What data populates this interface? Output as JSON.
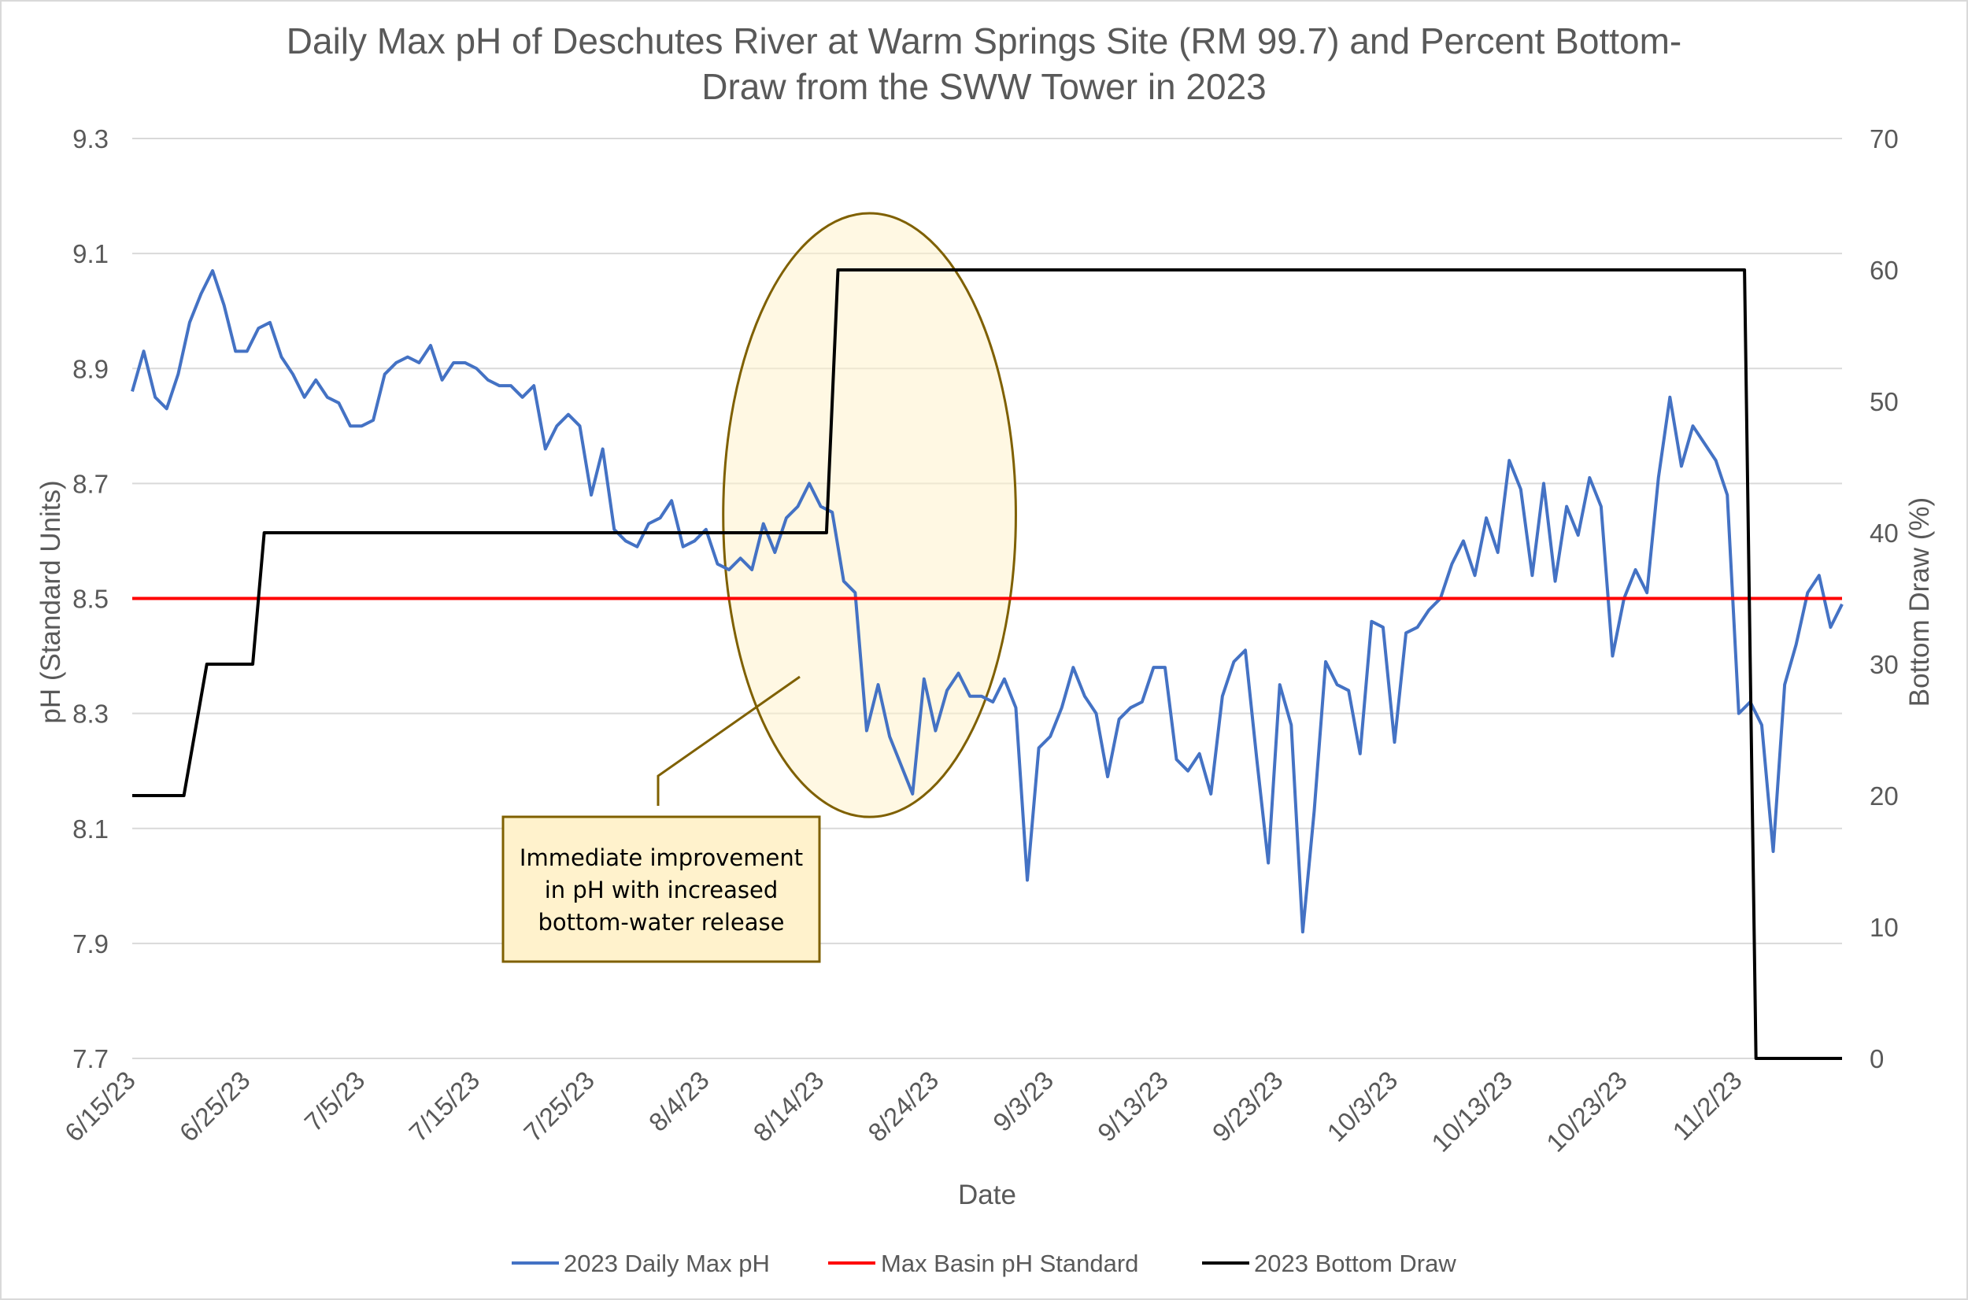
{
  "chart_data": {
    "type": "line",
    "title": "Daily Max pH of Deschutes River at Warm Springs Site (RM 99.7) and Percent Bottom-Draw from the SWW Tower in 2023",
    "title_lines": [
      "Daily Max pH of Deschutes River at Warm Springs Site (RM 99.7) and Percent Bottom-",
      "Draw from the SWW Tower in 2023"
    ],
    "xlabel": "Date",
    "ylabel": "pH (Standard Units)",
    "y2label": "Bottom Draw (%)",
    "ylim": [
      7.7,
      9.3
    ],
    "y2lim": [
      0,
      70
    ],
    "y_ticks": [
      "9.3",
      "9.1",
      "8.9",
      "8.7",
      "8.5",
      "8.3",
      "8.1",
      "7.9",
      "7.7"
    ],
    "y2_ticks": [
      "70",
      "60",
      "50",
      "40",
      "30",
      "20",
      "10",
      "0"
    ],
    "x_tick_labels": [
      "6/15/23",
      "6/25/23",
      "7/5/23",
      "7/15/23",
      "7/25/23",
      "8/4/23",
      "8/14/23",
      "8/24/23",
      "9/3/23",
      "9/13/23",
      "9/23/23",
      "10/3/23",
      "10/13/23",
      "10/23/23",
      "11/2/23"
    ],
    "x_range_days": [
      0,
      149
    ],
    "grid": true,
    "legend_position": "bottom",
    "series": [
      {
        "name": "2023 Daily Max pH",
        "axis": "left",
        "color": "#4472c4",
        "values": [
          8.86,
          8.93,
          8.85,
          8.83,
          8.89,
          8.98,
          9.03,
          9.07,
          9.01,
          8.93,
          8.93,
          8.97,
          8.98,
          8.92,
          8.89,
          8.85,
          8.88,
          8.85,
          8.84,
          8.8,
          8.8,
          8.81,
          8.89,
          8.91,
          8.92,
          8.91,
          8.94,
          8.88,
          8.91,
          8.91,
          8.9,
          8.88,
          8.87,
          8.87,
          8.85,
          8.87,
          8.76,
          8.8,
          8.82,
          8.8,
          8.68,
          8.76,
          8.62,
          8.6,
          8.59,
          8.63,
          8.64,
          8.67,
          8.59,
          8.6,
          8.62,
          8.56,
          8.55,
          8.57,
          8.55,
          8.63,
          8.58,
          8.64,
          8.66,
          8.7,
          8.66,
          8.65,
          8.53,
          8.51,
          8.27,
          8.35,
          8.26,
          8.21,
          8.16,
          8.36,
          8.27,
          8.34,
          8.37,
          8.33,
          8.33,
          8.32,
          8.36,
          8.31,
          8.01,
          8.24,
          8.26,
          8.31,
          8.38,
          8.33,
          8.3,
          8.19,
          8.29,
          8.31,
          8.32,
          8.38,
          8.38,
          8.22,
          8.2,
          8.23,
          8.16,
          8.33,
          8.39,
          8.41,
          8.22,
          8.04,
          8.35,
          8.28,
          7.92,
          8.13,
          8.39,
          8.35,
          8.34,
          8.23,
          8.46,
          8.45,
          8.25,
          8.44,
          8.45,
          8.48,
          8.5,
          8.56,
          8.6,
          8.54,
          8.64,
          8.58,
          8.74,
          8.69,
          8.54,
          8.7,
          8.53,
          8.66,
          8.61,
          8.71,
          8.66,
          8.4,
          8.5,
          8.55,
          8.51,
          8.71,
          8.85,
          8.73,
          8.8,
          8.77,
          8.74,
          8.68,
          8.3,
          8.32,
          8.28,
          8.06,
          8.35,
          8.42,
          8.51,
          8.54,
          8.45,
          8.49
        ]
      },
      {
        "name": "Max Basin pH Standard",
        "axis": "left",
        "color": "#ff0000",
        "x": [
          0,
          149
        ],
        "values": [
          8.5,
          8.5
        ]
      },
      {
        "name": "2023 Bottom Draw",
        "axis": "right",
        "color": "#000000",
        "x": [
          0,
          4.5,
          6.5,
          10.5,
          11,
          11.5,
          60.5,
          61,
          61.5,
          140.5,
          141,
          141.5,
          149
        ],
        "values": [
          20,
          20,
          30,
          30,
          35,
          40,
          40,
          50,
          60,
          60,
          30,
          0,
          0
        ]
      }
    ],
    "annotation": {
      "lines": [
        "Immediate improvement",
        "in pH with increased",
        "bottom-water release"
      ],
      "highlight_x_range": [
        51.5,
        77
      ],
      "highlight_y_range": [
        8.12,
        9.17
      ]
    }
  },
  "colors": {
    "ph_line": "#4472c4",
    "standard_line": "#ff0000",
    "bottom_draw_line": "#000000",
    "grid": "#d9d9d9",
    "text": "#595959",
    "ellipse_fill": "#fff2cc",
    "ellipse_stroke": "#7f6000",
    "annotation_box_fill": "#fff2cc",
    "annotation_box_stroke": "#7f6000"
  }
}
